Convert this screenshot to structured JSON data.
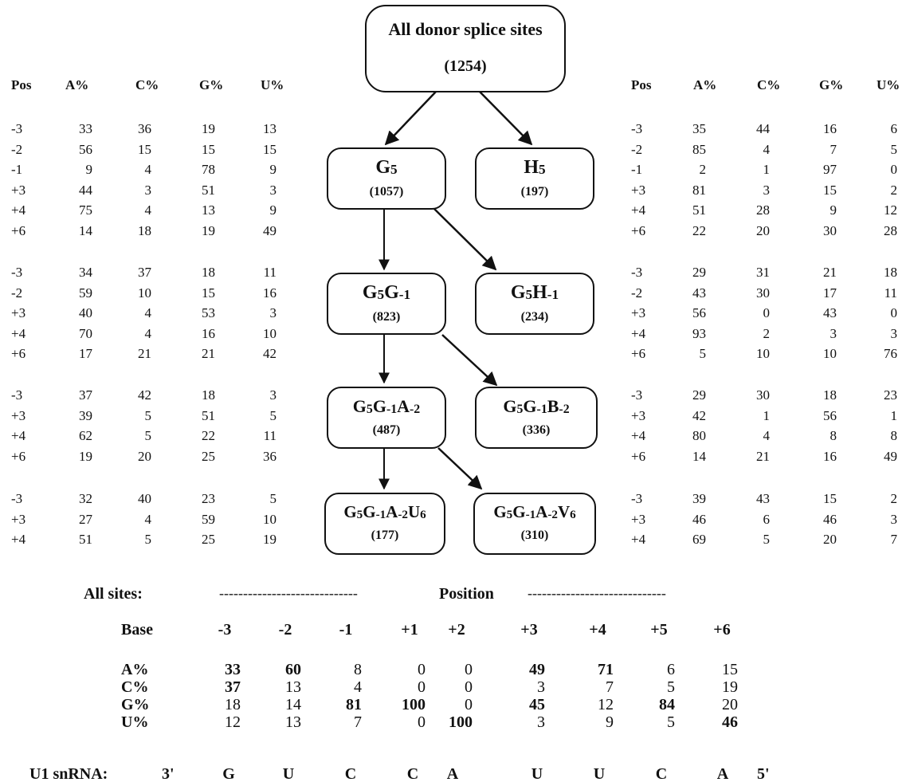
{
  "tree": {
    "root": {
      "label": "All donor splice sites",
      "count": "(1254)"
    },
    "nodes": [
      {
        "id": "g5",
        "label": [
          [
            "G",
            ""
          ],
          [
            "",
            "5"
          ]
        ],
        "count": "(1057)"
      },
      {
        "id": "h5",
        "label": [
          [
            "H",
            ""
          ],
          [
            "",
            "5"
          ]
        ],
        "count": "(197)"
      },
      {
        "id": "g5g-1",
        "label": [
          [
            "G",
            ""
          ],
          [
            "",
            "5"
          ],
          [
            "G",
            ""
          ],
          [
            "",
            "-1"
          ]
        ],
        "count": "(823)"
      },
      {
        "id": "g5h-1",
        "label": [
          [
            "G",
            ""
          ],
          [
            "",
            "5"
          ],
          [
            "H",
            ""
          ],
          [
            "",
            "-1"
          ]
        ],
        "count": "(234)"
      },
      {
        "id": "g5g-1a-2",
        "label": [
          [
            "G",
            ""
          ],
          [
            "",
            "5"
          ],
          [
            "G",
            ""
          ],
          [
            "",
            "-1"
          ],
          [
            "A",
            ""
          ],
          [
            "",
            "-2"
          ]
        ],
        "count": "(487)"
      },
      {
        "id": "g5g-1b-2",
        "label": [
          [
            "G",
            ""
          ],
          [
            "",
            "5"
          ],
          [
            "G",
            ""
          ],
          [
            "",
            "-1"
          ],
          [
            "B",
            ""
          ],
          [
            "",
            "-2"
          ]
        ],
        "count": "(336)"
      },
      {
        "id": "g5g-1a-2u6",
        "label": [
          [
            "G",
            ""
          ],
          [
            "",
            "5"
          ],
          [
            "G",
            ""
          ],
          [
            "",
            "-1"
          ],
          [
            "A",
            ""
          ],
          [
            "",
            "-2"
          ],
          [
            "U",
            ""
          ],
          [
            "",
            "6"
          ]
        ],
        "count": "(177)"
      },
      {
        "id": "g5g-1a-2v6",
        "label": [
          [
            "G",
            ""
          ],
          [
            "",
            "5"
          ],
          [
            "G",
            ""
          ],
          [
            "",
            "-1"
          ],
          [
            "A",
            ""
          ],
          [
            "",
            "-2"
          ],
          [
            "V",
            ""
          ],
          [
            "",
            "6"
          ]
        ],
        "count": "(310)"
      }
    ]
  },
  "left_table": {
    "header": [
      "Pos",
      "A%",
      "C%",
      "G%",
      "U%"
    ],
    "groups": [
      [
        [
          "-3",
          "33",
          "36",
          "19",
          "13"
        ],
        [
          "-2",
          "56",
          "15",
          "15",
          "15"
        ],
        [
          "-1",
          "9",
          "4",
          "78",
          "9"
        ],
        [
          "+3",
          "44",
          "3",
          "51",
          "3"
        ],
        [
          "+4",
          "75",
          "4",
          "13",
          "9"
        ],
        [
          "+6",
          "14",
          "18",
          "19",
          "49"
        ]
      ],
      [
        [
          "-3",
          "34",
          "37",
          "18",
          "11"
        ],
        [
          "-2",
          "59",
          "10",
          "15",
          "16"
        ],
        [
          "+3",
          "40",
          "4",
          "53",
          "3"
        ],
        [
          "+4",
          "70",
          "4",
          "16",
          "10"
        ],
        [
          "+6",
          "17",
          "21",
          "21",
          "42"
        ]
      ],
      [
        [
          "-3",
          "37",
          "42",
          "18",
          "3"
        ],
        [
          "+3",
          "39",
          "5",
          "51",
          "5"
        ],
        [
          "+4",
          "62",
          "5",
          "22",
          "11"
        ],
        [
          "+6",
          "19",
          "20",
          "25",
          "36"
        ]
      ],
      [
        [
          "-3",
          "32",
          "40",
          "23",
          "5"
        ],
        [
          "+3",
          "27",
          "4",
          "59",
          "10"
        ],
        [
          "+4",
          "51",
          "5",
          "25",
          "19"
        ]
      ]
    ]
  },
  "right_table": {
    "header": [
      "Pos",
      "A%",
      "C%",
      "G%",
      "U%"
    ],
    "groups": [
      [
        [
          "-3",
          "35",
          "44",
          "16",
          "6"
        ],
        [
          "-2",
          "85",
          "4",
          "7",
          "5"
        ],
        [
          "-1",
          "2",
          "1",
          "97",
          "0"
        ],
        [
          "+3",
          "81",
          "3",
          "15",
          "2"
        ],
        [
          "+4",
          "51",
          "28",
          "9",
          "12"
        ],
        [
          "+6",
          "22",
          "20",
          "30",
          "28"
        ]
      ],
      [
        [
          "-3",
          "29",
          "31",
          "21",
          "18"
        ],
        [
          "-2",
          "43",
          "30",
          "17",
          "11"
        ],
        [
          "+3",
          "56",
          "0",
          "43",
          "0"
        ],
        [
          "+4",
          "93",
          "2",
          "3",
          "3"
        ],
        [
          "+6",
          "5",
          "10",
          "10",
          "76"
        ]
      ],
      [
        [
          "-3",
          "29",
          "30",
          "18",
          "23"
        ],
        [
          "+3",
          "42",
          "1",
          "56",
          "1"
        ],
        [
          "+4",
          "80",
          "4",
          "8",
          "8"
        ],
        [
          "+6",
          "14",
          "21",
          "16",
          "49"
        ]
      ],
      [
        [
          "-3",
          "39",
          "43",
          "15",
          "2"
        ],
        [
          "+3",
          "46",
          "6",
          "46",
          "3"
        ],
        [
          "+4",
          "69",
          "5",
          "20",
          "7"
        ]
      ]
    ]
  },
  "bottom": {
    "all_sites_label": "All sites:",
    "position_label": "Position",
    "dashes_left": "-----------------------------",
    "dashes_right": "-----------------------------",
    "base_label": "Base",
    "positions": [
      "-3",
      "-2",
      "-1",
      "+1",
      "+2",
      "+3",
      "+4",
      "+5",
      "+6"
    ],
    "rows": [
      {
        "label": "A%",
        "values": [
          "33",
          "60",
          "8",
          "0",
          "0",
          "49",
          "71",
          "6",
          "15"
        ],
        "bold": [
          true,
          true,
          false,
          false,
          false,
          true,
          true,
          false,
          false
        ]
      },
      {
        "label": "C%",
        "values": [
          "37",
          "13",
          "4",
          "0",
          "0",
          "3",
          "7",
          "5",
          "19"
        ],
        "bold": [
          true,
          false,
          false,
          false,
          false,
          false,
          false,
          false,
          false
        ]
      },
      {
        "label": "G%",
        "values": [
          "18",
          "14",
          "81",
          "100",
          "0",
          "45",
          "12",
          "84",
          "20"
        ],
        "bold": [
          false,
          false,
          true,
          true,
          false,
          true,
          false,
          true,
          false
        ]
      },
      {
        "label": "U%",
        "values": [
          "12",
          "13",
          "7",
          "0",
          "100",
          "3",
          "9",
          "5",
          "46"
        ],
        "bold": [
          false,
          false,
          false,
          false,
          true,
          false,
          false,
          false,
          true
        ]
      }
    ],
    "snrna": {
      "label": "U1 snRNA:",
      "end3": "3'",
      "bases": [
        "G",
        "U",
        "C",
        "C",
        "A",
        "U",
        "U",
        "C",
        "A"
      ],
      "end5": "5'"
    }
  }
}
